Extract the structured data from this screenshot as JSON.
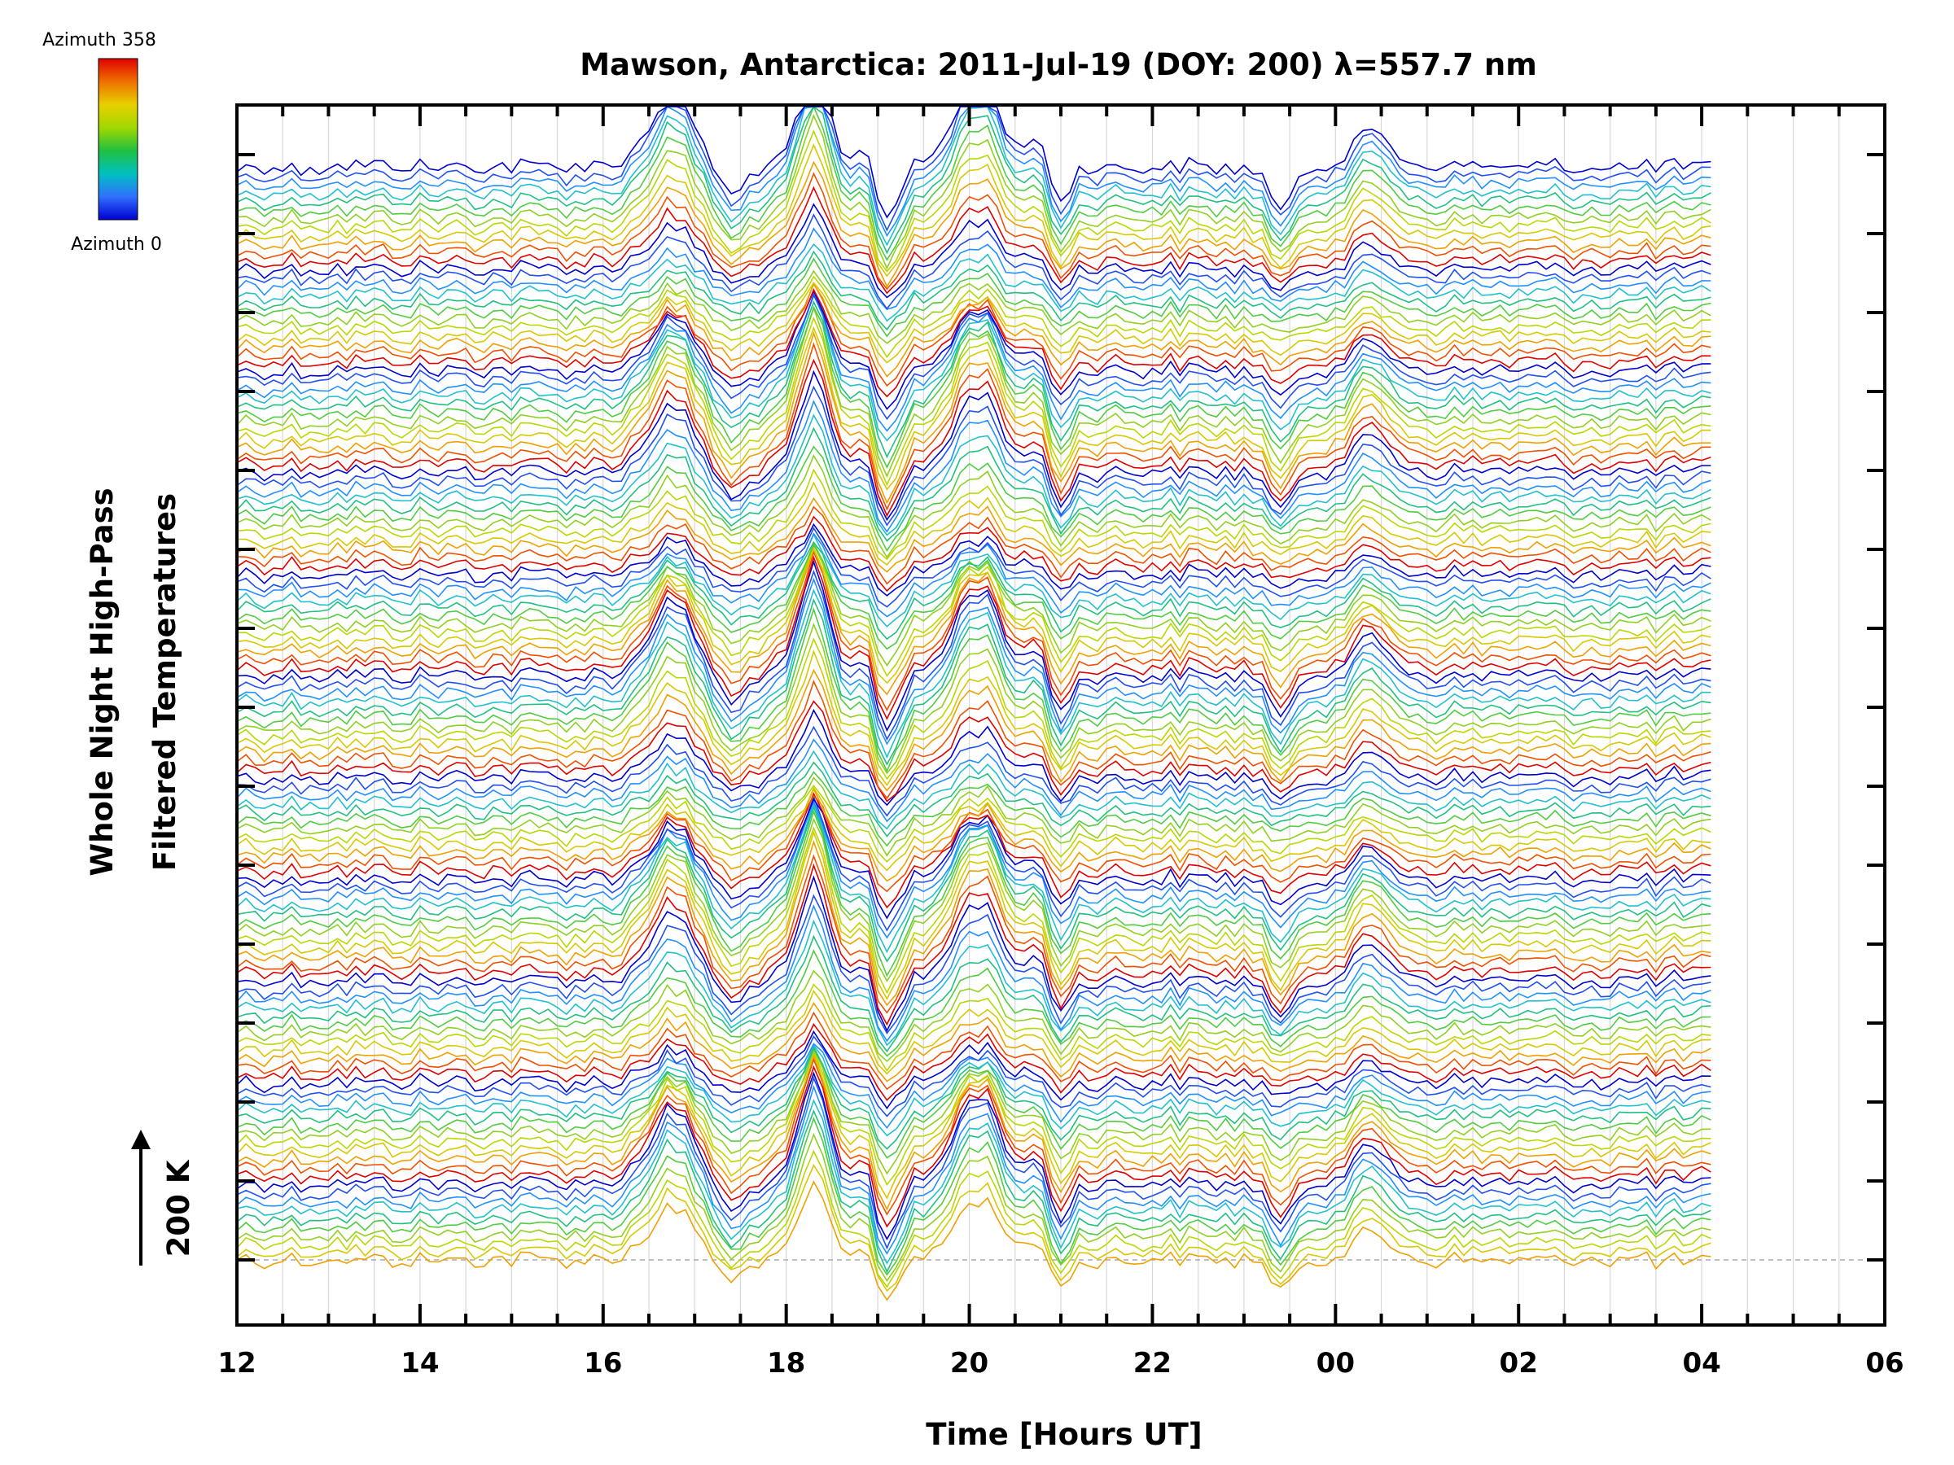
{
  "chart_data": {
    "type": "line",
    "title": "Mawson, Antarctica: 2011-Jul-19 (DOY: 200) λ=557.7 nm",
    "xlabel": "Time [Hours UT]",
    "ylabel_line1": "Whole Night High-Pass",
    "ylabel_line2": "Filtered Temperatures",
    "scale_label": "200 K",
    "colorbar": {
      "top_label": "Azimuth 358",
      "bottom_label": "Azimuth 0",
      "colors": [
        "#e00000",
        "#f07000",
        "#e8d000",
        "#a0d800",
        "#20c040",
        "#00c0c0",
        "#3070ff",
        "#0000d0"
      ]
    },
    "xlim": [
      12,
      30
    ],
    "x_ticks": [
      "12",
      "14",
      "16",
      "18",
      "20",
      "22",
      "00",
      "02",
      "04",
      "06"
    ],
    "data_x_range": [
      12.0,
      28.15
    ],
    "series_count": 130,
    "line_colors": [
      "#0000d0",
      "#2050f0",
      "#2090ff",
      "#20c0d0",
      "#20c080",
      "#50cc40",
      "#90d020",
      "#b8d800",
      "#d8c800",
      "#f0a000",
      "#f05000",
      "#e00000"
    ],
    "grid": true
  }
}
